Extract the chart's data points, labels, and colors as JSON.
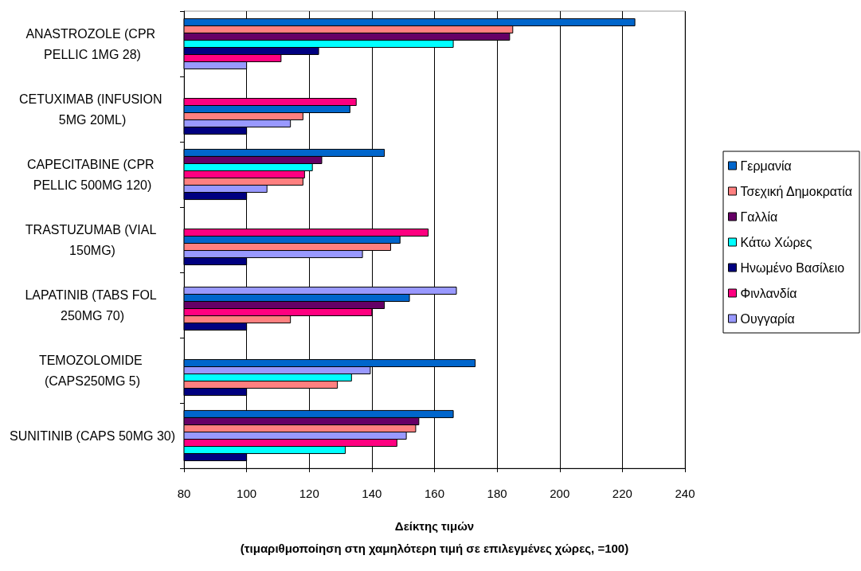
{
  "chart_data": {
    "type": "bar",
    "orientation": "horizontal",
    "categories": [
      "ANASTROZOLE (CPR PELLIC 1MG 28)",
      "CETUXIMAB (INFUSION 5MG 20ML)",
      "CAPECITABINE (CPR PELLIC 500MG 120)",
      "TRASTUZUMAB (VIAL 150MG)",
      "LAPATINIB (TABS FOL 250MG 70)",
      "TEMOZOLOMIDE (CAPS250MG 5)",
      "SUNITINIB (CAPS 50MG 30)"
    ],
    "series": [
      {
        "name": "Γερμανία",
        "color": "#0066cc",
        "values": [
          224,
          133,
          144,
          149,
          152,
          173,
          166
        ]
      },
      {
        "name": "Τσεχική Δημοκρατία",
        "color": "#ff8080",
        "values": [
          185,
          118,
          118,
          146,
          114,
          129,
          154
        ]
      },
      {
        "name": "Γαλλία",
        "color": "#660066",
        "values": [
          184,
          null,
          124,
          null,
          144,
          null,
          155
        ]
      },
      {
        "name": "Κάτω Χώρες",
        "color": "#00ffff",
        "values": [
          166,
          null,
          121,
          null,
          null,
          133.5,
          131.5
        ]
      },
      {
        "name": "Ηνωμένο Βασίλειο",
        "color": "#000080",
        "values": [
          123,
          100,
          100,
          100,
          100,
          100,
          100
        ]
      },
      {
        "name": "Φινλανδία",
        "color": "#ff0080",
        "values": [
          111,
          135,
          118.5,
          158,
          140,
          null,
          148
        ]
      },
      {
        "name": "Ουγγαρία",
        "color": "#9999ff",
        "values": [
          100,
          114,
          106.5,
          137,
          167,
          139.5,
          151
        ]
      }
    ],
    "xlabel": "Δείκτης τιμών\n(τιμαριθμοποίηση στη χαμηλότερη τιμή σε επιλεγμένες χώρες, =100)",
    "xlim": [
      80,
      240
    ],
    "xticks": [
      80,
      100,
      120,
      140,
      160,
      180,
      200,
      220,
      240
    ],
    "grid": "x",
    "legend": "right"
  }
}
